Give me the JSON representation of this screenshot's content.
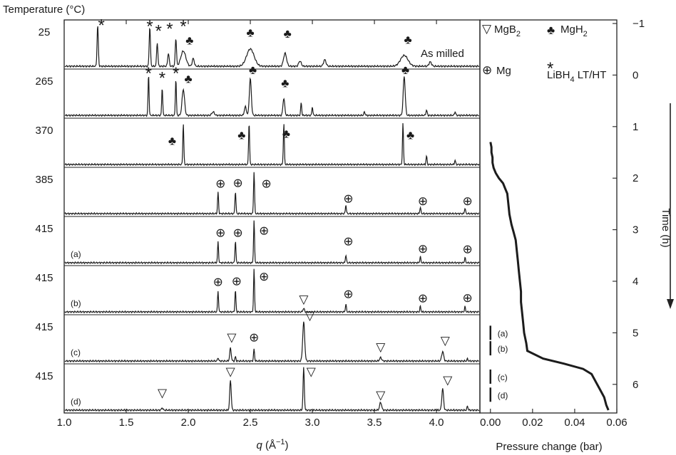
{
  "chart_data": [
    {
      "type": "line",
      "title": "",
      "xlabel_symbol": "q",
      "xlabel_unit": " (Å",
      "xlabel_exp": "−1",
      "xlabel_close": ")",
      "ylabel": "Temperature (°C)",
      "xlim": [
        1.0,
        4.35
      ],
      "xticks": [
        "1.0",
        "1.5",
        "2.0",
        "2.5",
        "3.0",
        "3.5",
        "4.0"
      ],
      "xtick_values": [
        1.0,
        1.5,
        2.0,
        2.5,
        3.0,
        3.5,
        4.0
      ],
      "series": [
        {
          "temperature": "25",
          "label": "As milled",
          "tag": "",
          "peaks": [
            {
              "q": 1.27,
              "h": 0.95,
              "w": 0.005
            },
            {
              "q": 1.69,
              "h": 0.92,
              "w": 0.005
            },
            {
              "q": 1.75,
              "h": 0.55,
              "w": 0.005
            },
            {
              "q": 1.84,
              "h": 0.3,
              "w": 0.006
            },
            {
              "q": 1.9,
              "h": 0.65,
              "w": 0.005
            },
            {
              "q": 1.96,
              "h": 0.35,
              "w": 0.02
            },
            {
              "q": 2.04,
              "h": 0.18,
              "w": 0.008
            },
            {
              "q": 2.5,
              "h": 0.4,
              "w": 0.03
            },
            {
              "q": 2.78,
              "h": 0.3,
              "w": 0.012
            },
            {
              "q": 2.9,
              "h": 0.12,
              "w": 0.01
            },
            {
              "q": 3.1,
              "h": 0.15,
              "w": 0.01
            },
            {
              "q": 3.74,
              "h": 0.25,
              "w": 0.03
            },
            {
              "q": 3.95,
              "h": 0.1,
              "w": 0.01
            }
          ]
        },
        {
          "temperature": "265",
          "label": "",
          "tag": "",
          "peaks": [
            {
              "q": 1.68,
              "h": 0.95,
              "w": 0.004
            },
            {
              "q": 1.79,
              "h": 0.65,
              "w": 0.004
            },
            {
              "q": 1.9,
              "h": 0.85,
              "w": 0.004
            },
            {
              "q": 1.96,
              "h": 0.6,
              "w": 0.01
            },
            {
              "q": 2.2,
              "h": 0.08,
              "w": 0.01
            },
            {
              "q": 2.46,
              "h": 0.2,
              "w": 0.008
            },
            {
              "q": 2.5,
              "h": 0.85,
              "w": 0.008
            },
            {
              "q": 2.77,
              "h": 0.4,
              "w": 0.007
            },
            {
              "q": 2.91,
              "h": 0.3,
              "w": 0.004
            },
            {
              "q": 3.0,
              "h": 0.2,
              "w": 0.004
            },
            {
              "q": 3.42,
              "h": 0.08,
              "w": 0.005
            },
            {
              "q": 3.74,
              "h": 0.9,
              "w": 0.008
            },
            {
              "q": 3.92,
              "h": 0.12,
              "w": 0.005
            },
            {
              "q": 4.15,
              "h": 0.08,
              "w": 0.005
            }
          ]
        },
        {
          "temperature": "370",
          "label": "",
          "tag": "",
          "peaks": [
            {
              "q": 1.96,
              "h": 0.95,
              "w": 0.004
            },
            {
              "q": 2.49,
              "h": 0.98,
              "w": 0.004
            },
            {
              "q": 2.77,
              "h": 0.95,
              "w": 0.004
            },
            {
              "q": 3.73,
              "h": 0.95,
              "w": 0.004
            },
            {
              "q": 3.92,
              "h": 0.2,
              "w": 0.004
            },
            {
              "q": 4.15,
              "h": 0.1,
              "w": 0.004
            }
          ]
        },
        {
          "temperature": "385",
          "label": "",
          "tag": "",
          "peaks": [
            {
              "q": 2.24,
              "h": 0.5,
              "w": 0.004
            },
            {
              "q": 2.38,
              "h": 0.52,
              "w": 0.004
            },
            {
              "q": 2.53,
              "h": 0.98,
              "w": 0.004
            },
            {
              "q": 3.27,
              "h": 0.2,
              "w": 0.004
            },
            {
              "q": 3.87,
              "h": 0.15,
              "w": 0.004
            },
            {
              "q": 4.23,
              "h": 0.13,
              "w": 0.004
            }
          ]
        },
        {
          "temperature": "415",
          "label": "",
          "tag": "(a)",
          "peaks": [
            {
              "q": 2.24,
              "h": 0.48,
              "w": 0.004
            },
            {
              "q": 2.38,
              "h": 0.5,
              "w": 0.004
            },
            {
              "q": 2.53,
              "h": 0.98,
              "w": 0.004
            },
            {
              "q": 3.27,
              "h": 0.18,
              "w": 0.004
            },
            {
              "q": 3.87,
              "h": 0.14,
              "w": 0.004
            },
            {
              "q": 4.23,
              "h": 0.12,
              "w": 0.004
            }
          ]
        },
        {
          "temperature": "415",
          "label": "",
          "tag": "(b)",
          "peaks": [
            {
              "q": 2.24,
              "h": 0.48,
              "w": 0.004
            },
            {
              "q": 2.38,
              "h": 0.5,
              "w": 0.004
            },
            {
              "q": 2.53,
              "h": 0.98,
              "w": 0.004
            },
            {
              "q": 2.93,
              "h": 0.08,
              "w": 0.006
            },
            {
              "q": 3.27,
              "h": 0.18,
              "w": 0.004
            },
            {
              "q": 3.87,
              "h": 0.13,
              "w": 0.004
            },
            {
              "q": 4.23,
              "h": 0.12,
              "w": 0.004
            }
          ]
        },
        {
          "temperature": "415",
          "label": "",
          "tag": "(c)",
          "peaks": [
            {
              "q": 2.24,
              "h": 0.08,
              "w": 0.004
            },
            {
              "q": 2.34,
              "h": 0.3,
              "w": 0.006
            },
            {
              "q": 2.38,
              "h": 0.1,
              "w": 0.004
            },
            {
              "q": 2.53,
              "h": 0.28,
              "w": 0.004
            },
            {
              "q": 2.93,
              "h": 0.9,
              "w": 0.008
            },
            {
              "q": 3.55,
              "h": 0.08,
              "w": 0.008
            },
            {
              "q": 4.05,
              "h": 0.22,
              "w": 0.008
            },
            {
              "q": 4.25,
              "h": 0.05,
              "w": 0.004
            }
          ]
        },
        {
          "temperature": "415",
          "label": "",
          "tag": "(d)",
          "peaks": [
            {
              "q": 1.79,
              "h": 0.05,
              "w": 0.006
            },
            {
              "q": 2.34,
              "h": 0.7,
              "w": 0.006
            },
            {
              "q": 2.93,
              "h": 0.98,
              "w": 0.005
            },
            {
              "q": 3.55,
              "h": 0.18,
              "w": 0.008
            },
            {
              "q": 4.05,
              "h": 0.5,
              "w": 0.007
            },
            {
              "q": 4.25,
              "h": 0.1,
              "w": 0.004
            }
          ]
        }
      ],
      "annotations": [
        {
          "series": 0,
          "symbol": "*",
          "q": 1.3,
          "h": 1.08
        },
        {
          "series": 0,
          "symbol": "*",
          "q": 1.69,
          "h": 1.05
        },
        {
          "series": 0,
          "symbol": "*",
          "q": 1.76,
          "h": 0.95
        },
        {
          "series": 0,
          "symbol": "*",
          "q": 1.85,
          "h": 1.0
        },
        {
          "series": 0,
          "symbol": "*",
          "q": 1.96,
          "h": 1.05
        },
        {
          "series": 0,
          "symbol": "♣",
          "q": 2.01,
          "h": 0.6
        },
        {
          "series": 0,
          "symbol": "♣",
          "q": 2.5,
          "h": 0.78
        },
        {
          "series": 0,
          "symbol": "♣",
          "q": 2.8,
          "h": 0.76
        },
        {
          "series": 0,
          "symbol": "♣",
          "q": 3.77,
          "h": 0.62
        },
        {
          "series": 1,
          "symbol": "*",
          "q": 1.68,
          "h": 1.1
        },
        {
          "series": 1,
          "symbol": "*",
          "q": 1.79,
          "h": 1.0
        },
        {
          "series": 1,
          "symbol": "*",
          "q": 1.9,
          "h": 1.1
        },
        {
          "series": 1,
          "symbol": "♣",
          "q": 2.0,
          "h": 0.85
        },
        {
          "series": 1,
          "symbol": "♣",
          "q": 2.52,
          "h": 1.05
        },
        {
          "series": 1,
          "symbol": "♣",
          "q": 2.78,
          "h": 0.75
        },
        {
          "series": 1,
          "symbol": "♣",
          "q": 3.75,
          "h": 1.05
        },
        {
          "series": 2,
          "symbol": "♣",
          "q": 1.87,
          "h": 0.55
        },
        {
          "series": 2,
          "symbol": "♣",
          "q": 2.43,
          "h": 0.68
        },
        {
          "series": 2,
          "symbol": "♣",
          "q": 2.79,
          "h": 0.72
        },
        {
          "series": 2,
          "symbol": "♣",
          "q": 3.79,
          "h": 0.68
        },
        {
          "series": 3,
          "symbol": "⊕",
          "q": 2.26,
          "h": 0.7
        },
        {
          "series": 3,
          "symbol": "⊕",
          "q": 2.4,
          "h": 0.72
        },
        {
          "series": 3,
          "symbol": "⊕",
          "q": 2.63,
          "h": 0.7
        },
        {
          "series": 3,
          "symbol": "⊕",
          "q": 3.29,
          "h": 0.35
        },
        {
          "series": 3,
          "symbol": "⊕",
          "q": 3.89,
          "h": 0.3
        },
        {
          "series": 3,
          "symbol": "⊕",
          "q": 4.25,
          "h": 0.3
        },
        {
          "series": 4,
          "symbol": "⊕",
          "q": 2.26,
          "h": 0.7
        },
        {
          "series": 4,
          "symbol": "⊕",
          "q": 2.4,
          "h": 0.7
        },
        {
          "series": 4,
          "symbol": "⊕",
          "q": 2.61,
          "h": 0.75
        },
        {
          "series": 4,
          "symbol": "⊕",
          "q": 3.29,
          "h": 0.5
        },
        {
          "series": 4,
          "symbol": "⊕",
          "q": 3.89,
          "h": 0.33
        },
        {
          "series": 4,
          "symbol": "⊕",
          "q": 4.25,
          "h": 0.32
        },
        {
          "series": 5,
          "symbol": "⊕",
          "q": 2.24,
          "h": 0.7
        },
        {
          "series": 5,
          "symbol": "⊕",
          "q": 2.39,
          "h": 0.72
        },
        {
          "series": 5,
          "symbol": "⊕",
          "q": 2.61,
          "h": 0.82
        },
        {
          "series": 5,
          "symbol": "▽",
          "q": 2.93,
          "h": 0.3
        },
        {
          "series": 5,
          "symbol": "⊕",
          "q": 3.29,
          "h": 0.42
        },
        {
          "series": 5,
          "symbol": "⊕",
          "q": 3.89,
          "h": 0.32
        },
        {
          "series": 5,
          "symbol": "⊕",
          "q": 4.25,
          "h": 0.33
        },
        {
          "series": 6,
          "symbol": "▽",
          "q": 2.35,
          "h": 0.55
        },
        {
          "series": 6,
          "symbol": "⊕",
          "q": 2.53,
          "h": 0.55
        },
        {
          "series": 6,
          "symbol": "▽",
          "q": 2.98,
          "h": 1.05
        },
        {
          "series": 6,
          "symbol": "▽",
          "q": 3.55,
          "h": 0.33
        },
        {
          "series": 6,
          "symbol": "▽",
          "q": 4.07,
          "h": 0.48
        },
        {
          "series": 7,
          "symbol": "▽",
          "q": 1.79,
          "h": 0.4
        },
        {
          "series": 7,
          "symbol": "▽",
          "q": 2.34,
          "h": 0.9
        },
        {
          "series": 7,
          "symbol": "▽",
          "q": 2.99,
          "h": 0.9
        },
        {
          "series": 7,
          "symbol": "▽",
          "q": 3.55,
          "h": 0.35
        },
        {
          "series": 7,
          "symbol": "▽",
          "q": 4.09,
          "h": 0.7
        }
      ],
      "legend": [
        {
          "symbol": "▽",
          "label": "MgB",
          "sub": "2"
        },
        {
          "symbol": "♣",
          "label": "MgH",
          "sub": "2"
        },
        {
          "symbol": "⊕",
          "label": "Mg",
          "sub": ""
        },
        {
          "symbol": "*",
          "label": "LiBH",
          "sub": "4",
          "after": " LT/HT"
        }
      ]
    },
    {
      "type": "line",
      "title": "",
      "xlabel": "Pressure change (bar)",
      "ylabel": "Time (h)",
      "xlim": [
        -0.005,
        0.06
      ],
      "ylim": [
        -1,
        6.5
      ],
      "xticks": [
        "0.00",
        "0.02",
        "0.04",
        "0.06"
      ],
      "xtick_values": [
        0.0,
        0.02,
        0.04,
        0.06
      ],
      "yticks": [
        "−1",
        "0",
        "1",
        "2",
        "3",
        "4",
        "5",
        "6"
      ],
      "ytick_values": [
        -1,
        0,
        1,
        2,
        3,
        4,
        5,
        6
      ],
      "series": [
        {
          "x": [
            0.0,
            0.0005,
            0.0005,
            0.001,
            0.001,
            0.0015,
            0.0025,
            0.004,
            0.006,
            0.007,
            0.008,
            0.0085,
            0.009,
            0.01,
            0.011,
            0.012,
            0.0125,
            0.013,
            0.0135,
            0.014,
            0.0145,
            0.0145,
            0.015,
            0.0155,
            0.016,
            0.017,
            0.0175,
            0.025,
            0.035,
            0.044,
            0.048,
            0.05,
            0.052,
            0.054,
            0.055,
            0.056
          ],
          "y": [
            1.3,
            1.4,
            1.5,
            1.6,
            1.7,
            1.8,
            1.9,
            2.0,
            2.1,
            2.2,
            2.3,
            2.5,
            2.7,
            2.9,
            3.05,
            3.2,
            3.4,
            3.6,
            3.8,
            4.0,
            4.2,
            4.4,
            4.6,
            4.8,
            5.0,
            5.2,
            5.35,
            5.5,
            5.6,
            5.7,
            5.8,
            5.95,
            6.1,
            6.25,
            6.4,
            6.5
          ]
        }
      ],
      "markers": [
        {
          "label": "(a)",
          "y": 5.0
        },
        {
          "label": "(b)",
          "y": 5.3
        },
        {
          "label": "(c)",
          "y": 5.85
        },
        {
          "label": "(d)",
          "y": 6.2
        }
      ]
    }
  ]
}
